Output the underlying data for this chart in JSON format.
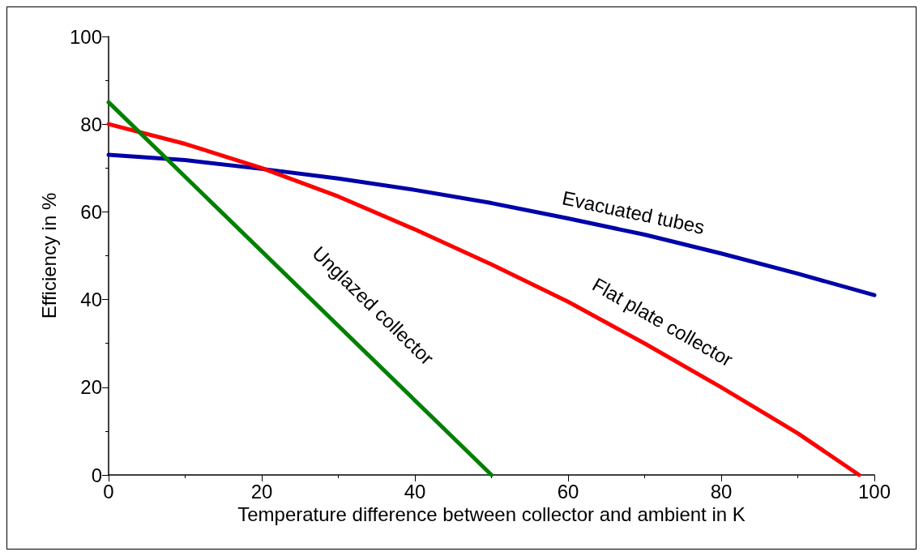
{
  "chart_data": {
    "type": "line",
    "xlabel": "Temperature difference between collector and ambient in K",
    "ylabel": "Efficiency in %",
    "xlim": [
      0,
      100
    ],
    "ylim": [
      0,
      100
    ],
    "xticks": [
      0,
      20,
      40,
      60,
      80,
      100
    ],
    "yticks": [
      0,
      20,
      40,
      60,
      80,
      100
    ],
    "grid": false,
    "legend": false,
    "marker": "none",
    "line_style": "solid",
    "series": [
      {
        "name": "Evacuated tubes",
        "color": "#0000a8",
        "x": [
          0,
          10,
          20,
          30,
          40,
          50,
          60,
          70,
          80,
          90,
          100
        ],
        "values": [
          73,
          71.8,
          69.8,
          67.6,
          65,
          62,
          58.5,
          54.8,
          50.5,
          45.9,
          41
        ]
      },
      {
        "name": "Flat plate collector",
        "color": "#ff0000",
        "x": [
          0,
          10,
          20,
          30,
          40,
          50,
          60,
          70,
          80,
          90,
          98
        ],
        "values": [
          80,
          75.5,
          70,
          63.5,
          56,
          48,
          39.5,
          30,
          20,
          9.5,
          0
        ]
      },
      {
        "name": "Unglazed collector",
        "color": "#008000",
        "x": [
          0,
          50
        ],
        "values": [
          85,
          0
        ]
      }
    ]
  }
}
